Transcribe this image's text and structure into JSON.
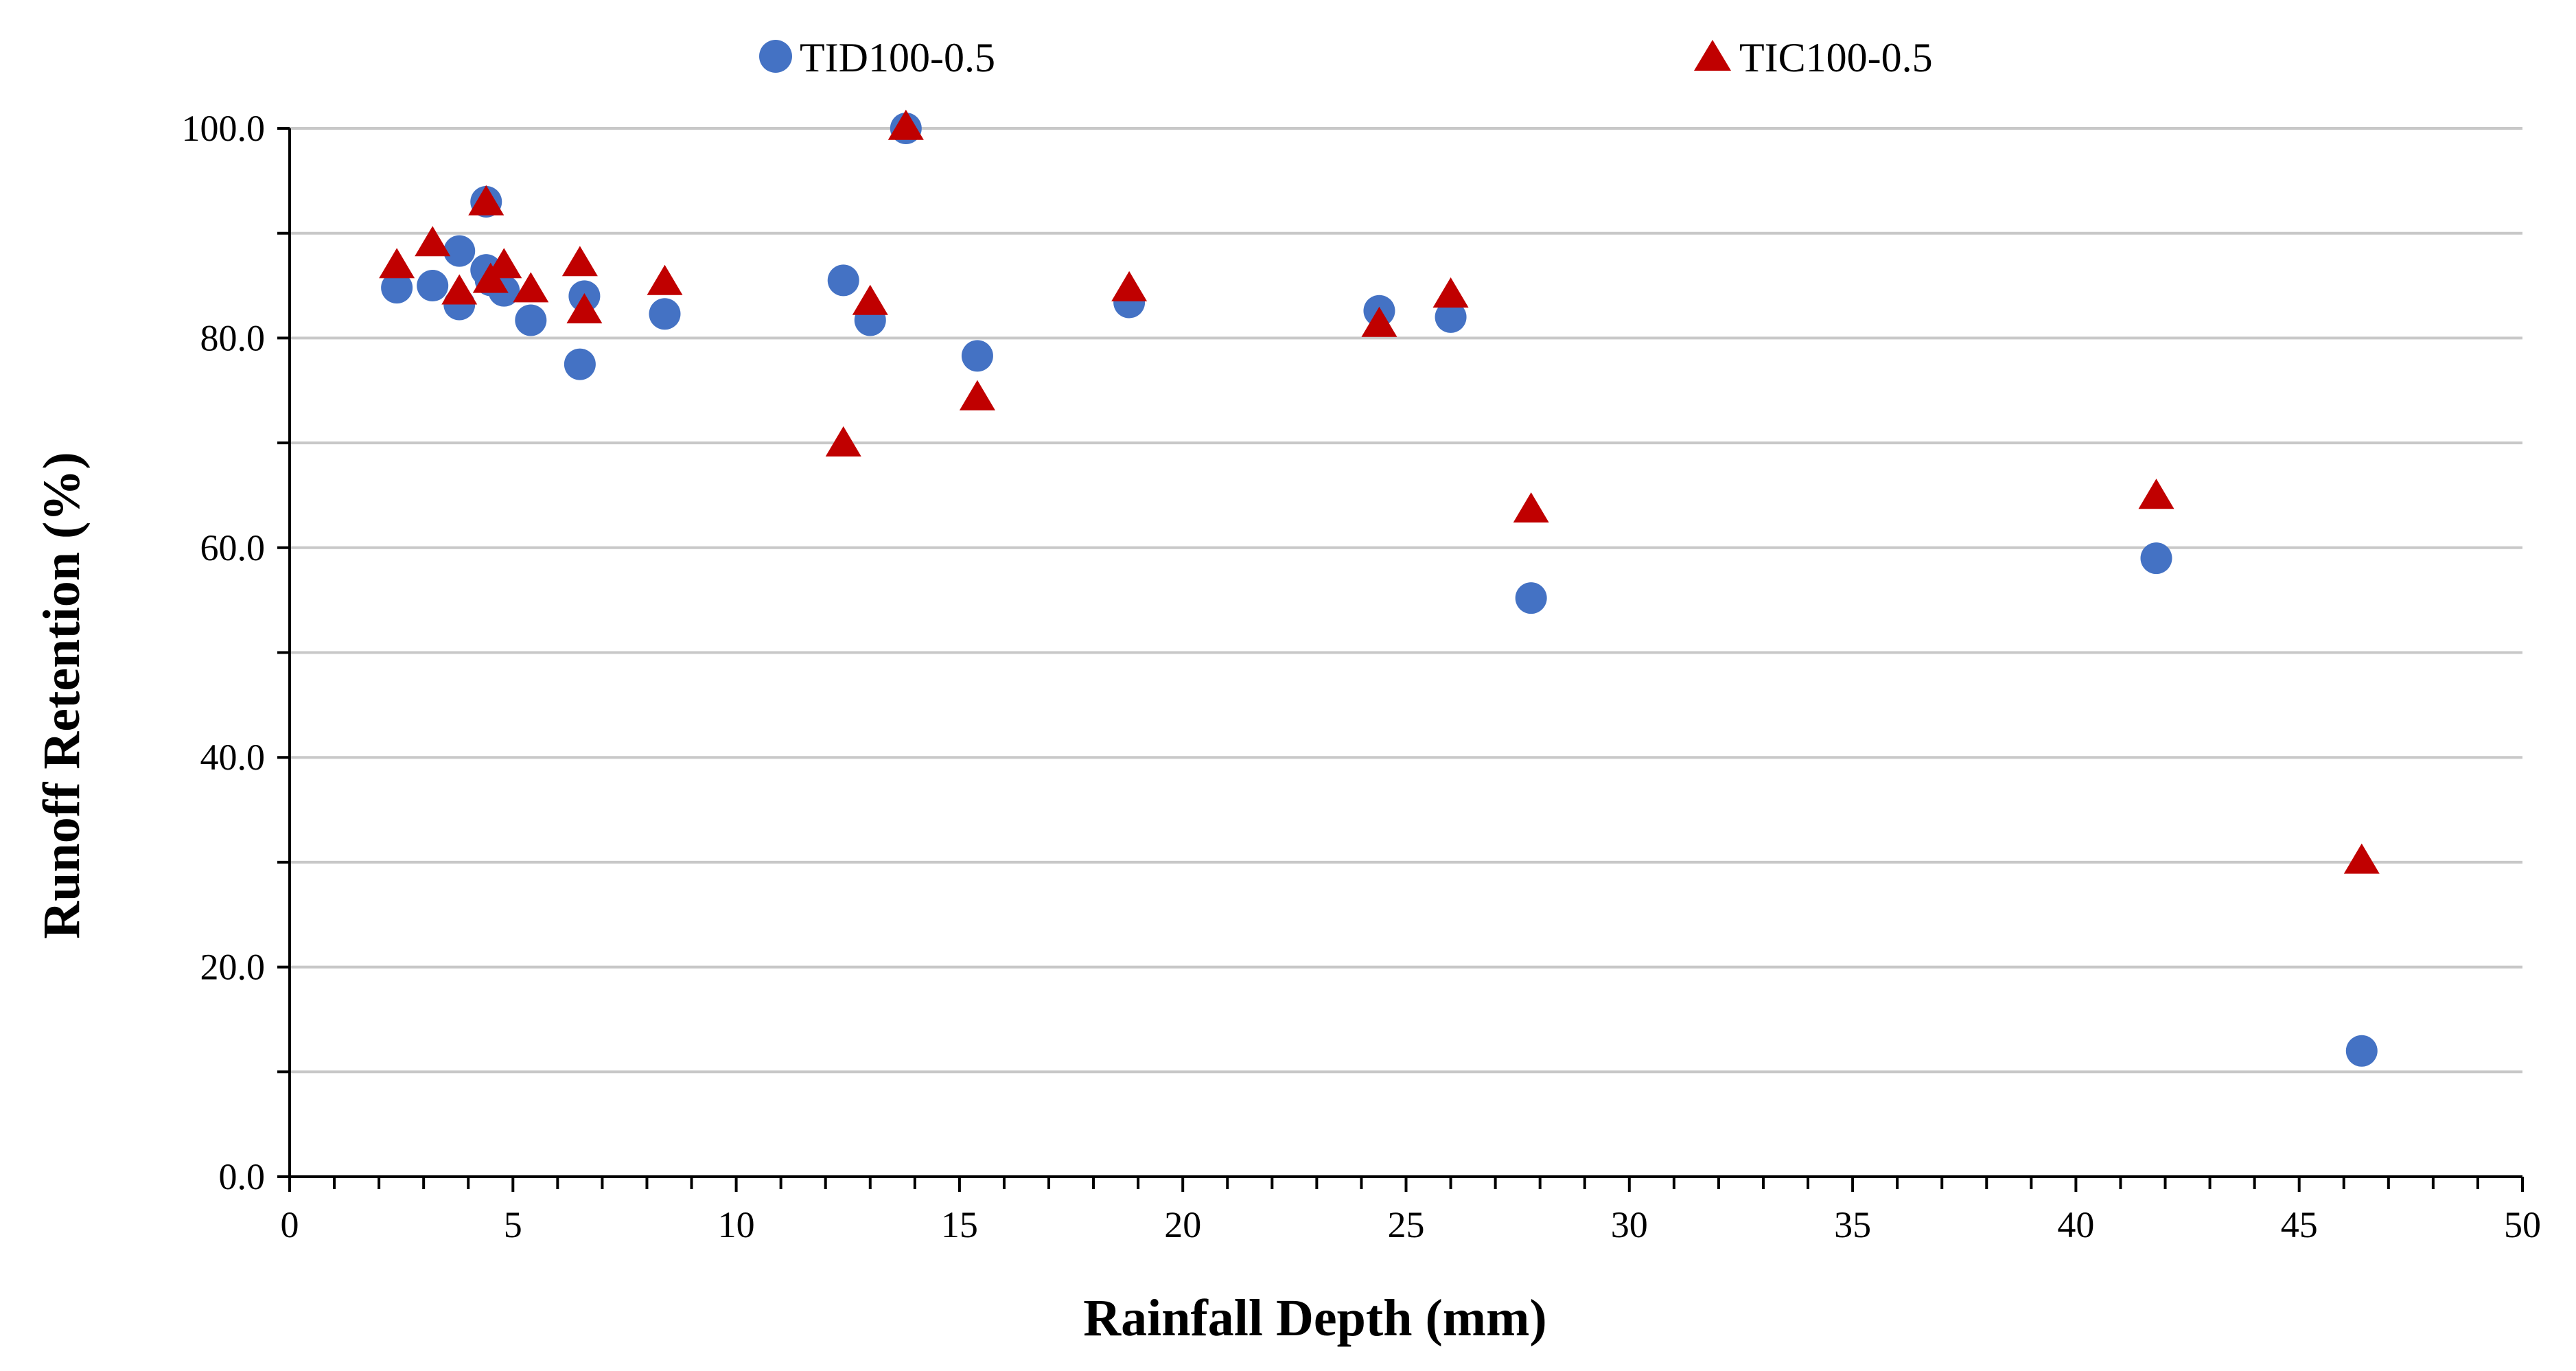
{
  "chart_data": {
    "type": "scatter",
    "title": "",
    "xlabel": "Rainfall Depth (mm)",
    "ylabel": "Runoff Retention (%)",
    "xlim": [
      0,
      50
    ],
    "ylim": [
      0,
      100
    ],
    "x_ticks": [
      0,
      5,
      10,
      15,
      20,
      25,
      30,
      35,
      40,
      45,
      50
    ],
    "x_tick_labels": [
      "0",
      "5",
      "10",
      "15",
      "20",
      "25",
      "30",
      "35",
      "40",
      "45",
      "50"
    ],
    "y_ticks": [
      0,
      20,
      40,
      60,
      80,
      100
    ],
    "y_tick_labels": [
      "0.0",
      "20.0",
      "40.0",
      "60.0",
      "80.0",
      "100.0"
    ],
    "x_minor_step": 1,
    "y_minor_step": 10,
    "grid": true,
    "legend_position": "top",
    "series": [
      {
        "name": "TID100-0.5",
        "marker": "circle",
        "color": "#4472c4",
        "points": [
          {
            "x": 2.4,
            "y": 84.8
          },
          {
            "x": 3.2,
            "y": 85.0
          },
          {
            "x": 3.8,
            "y": 88.3
          },
          {
            "x": 3.8,
            "y": 83.2
          },
          {
            "x": 4.4,
            "y": 93.0
          },
          {
            "x": 4.4,
            "y": 86.5
          },
          {
            "x": 4.5,
            "y": 85.5
          },
          {
            "x": 4.8,
            "y": 84.5
          },
          {
            "x": 5.4,
            "y": 81.7
          },
          {
            "x": 6.5,
            "y": 77.5
          },
          {
            "x": 6.6,
            "y": 84.0
          },
          {
            "x": 8.4,
            "y": 82.3
          },
          {
            "x": 12.4,
            "y": 85.5
          },
          {
            "x": 13.0,
            "y": 81.7
          },
          {
            "x": 13.8,
            "y": 100.0
          },
          {
            "x": 15.4,
            "y": 78.3
          },
          {
            "x": 18.8,
            "y": 83.4
          },
          {
            "x": 24.4,
            "y": 82.6
          },
          {
            "x": 26.0,
            "y": 82.0
          },
          {
            "x": 27.8,
            "y": 55.2
          },
          {
            "x": 41.8,
            "y": 59.0
          },
          {
            "x": 46.4,
            "y": 12.0
          }
        ]
      },
      {
        "name": "TIC100-0.5",
        "marker": "triangle",
        "color": "#c00000",
        "points": [
          {
            "x": 2.4,
            "y": 86.8
          },
          {
            "x": 3.2,
            "y": 88.9
          },
          {
            "x": 3.8,
            "y": 84.3
          },
          {
            "x": 4.4,
            "y": 92.8
          },
          {
            "x": 4.5,
            "y": 85.4
          },
          {
            "x": 4.8,
            "y": 86.8
          },
          {
            "x": 5.4,
            "y": 84.5
          },
          {
            "x": 6.5,
            "y": 87.0
          },
          {
            "x": 6.6,
            "y": 82.5
          },
          {
            "x": 8.4,
            "y": 85.2
          },
          {
            "x": 12.4,
            "y": 69.8
          },
          {
            "x": 13.0,
            "y": 83.3
          },
          {
            "x": 13.8,
            "y": 100.0
          },
          {
            "x": 15.4,
            "y": 74.2
          },
          {
            "x": 18.8,
            "y": 84.6
          },
          {
            "x": 24.4,
            "y": 81.2
          },
          {
            "x": 26.0,
            "y": 84.0
          },
          {
            "x": 27.8,
            "y": 63.5
          },
          {
            "x": 41.8,
            "y": 64.8
          },
          {
            "x": 46.4,
            "y": 30.0
          }
        ]
      }
    ]
  }
}
